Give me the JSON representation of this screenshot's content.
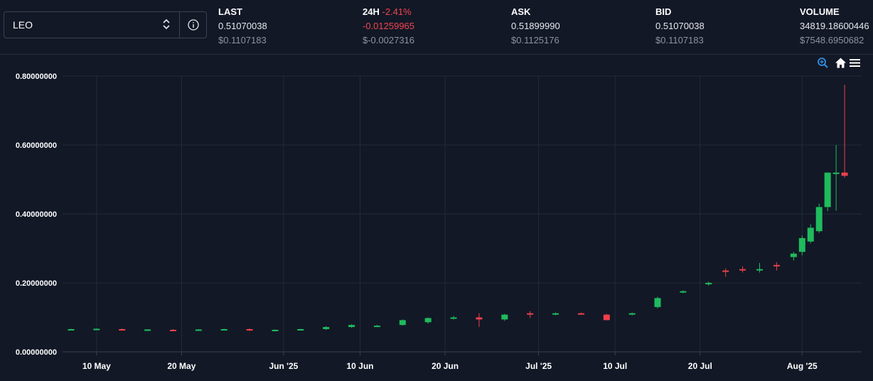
{
  "selector": {
    "value": "LEO"
  },
  "stats": [
    {
      "label": "LAST",
      "value": "0.51070038",
      "usd": "$0.1107183"
    },
    {
      "label": "24H",
      "pct": "-2.41%",
      "value": "-0.01259965",
      "usd": "$-0.0027316"
    },
    {
      "label": "ASK",
      "value": "0.51899990",
      "usd": "$0.1125176"
    },
    {
      "label": "BID",
      "value": "0.51070038",
      "usd": "$0.1107183"
    },
    {
      "label": "VOLUME",
      "value": "34819.18600446",
      "usd": "$7548.6950682"
    }
  ],
  "toolbar": {
    "zoom": "zoom-in-icon",
    "home": "home-icon",
    "menu": "menu-icon"
  },
  "colors": {
    "up": "#1fbb5d",
    "down": "#ee3f4c",
    "background": "#121826",
    "grid": "#232a38"
  },
  "chart_data": {
    "type": "candlestick",
    "ylim": [
      0,
      0.8
    ],
    "y_ticks": [
      "0.00000000",
      "0.20000000",
      "0.40000000",
      "0.60000000",
      "0.80000000"
    ],
    "x_ticks": [
      "10 May",
      "20 May",
      "Jun '25",
      "10 Jun",
      "20 Jun",
      "Jul '25",
      "10 Jul",
      "20 Jul",
      "Aug '25"
    ],
    "dates": [
      "2025-05-07",
      "2025-05-10",
      "2025-05-13",
      "2025-05-16",
      "2025-05-19",
      "2025-05-22",
      "2025-05-25",
      "2025-05-28",
      "2025-05-31",
      "2025-06-03",
      "2025-06-06",
      "2025-06-09",
      "2025-06-12",
      "2025-06-15",
      "2025-06-18",
      "2025-06-21",
      "2025-06-24",
      "2025-06-27",
      "2025-06-30",
      "2025-07-03",
      "2025-07-06",
      "2025-07-09",
      "2025-07-12",
      "2025-07-15",
      "2025-07-18",
      "2025-07-21",
      "2025-07-23",
      "2025-07-25",
      "2025-07-27",
      "2025-07-29",
      "2025-07-31",
      "2025-08-01",
      "2025-08-02",
      "2025-08-03",
      "2025-08-04",
      "2025-08-05",
      "2025-08-06"
    ],
    "ohlc": [
      [
        0.065,
        0.067,
        0.063,
        0.066
      ],
      [
        0.066,
        0.068,
        0.064,
        0.067
      ],
      [
        0.066,
        0.068,
        0.063,
        0.064
      ],
      [
        0.064,
        0.066,
        0.062,
        0.065
      ],
      [
        0.064,
        0.066,
        0.062,
        0.063
      ],
      [
        0.063,
        0.066,
        0.062,
        0.065
      ],
      [
        0.065,
        0.067,
        0.063,
        0.066
      ],
      [
        0.066,
        0.068,
        0.061,
        0.062
      ],
      [
        0.062,
        0.065,
        0.06,
        0.064
      ],
      [
        0.064,
        0.067,
        0.062,
        0.066
      ],
      [
        0.066,
        0.074,
        0.064,
        0.072
      ],
      [
        0.072,
        0.08,
        0.07,
        0.078
      ],
      [
        0.074,
        0.078,
        0.072,
        0.076
      ],
      [
        0.078,
        0.094,
        0.076,
        0.092
      ],
      [
        0.086,
        0.1,
        0.082,
        0.098
      ],
      [
        0.098,
        0.104,
        0.094,
        0.1
      ],
      [
        0.1,
        0.112,
        0.072,
        0.094
      ],
      [
        0.094,
        0.11,
        0.09,
        0.108
      ],
      [
        0.112,
        0.118,
        0.098,
        0.11
      ],
      [
        0.11,
        0.114,
        0.106,
        0.112
      ],
      [
        0.112,
        0.114,
        0.108,
        0.11
      ],
      [
        0.108,
        0.11,
        0.092,
        0.092
      ],
      [
        0.11,
        0.114,
        0.106,
        0.112
      ],
      [
        0.13,
        0.16,
        0.126,
        0.156
      ],
      [
        0.174,
        0.178,
        0.17,
        0.176
      ],
      [
        0.196,
        0.204,
        0.192,
        0.2
      ],
      [
        0.236,
        0.242,
        0.218,
        0.232
      ],
      [
        0.24,
        0.248,
        0.23,
        0.236
      ],
      [
        0.24,
        0.258,
        0.23,
        0.24
      ],
      [
        0.252,
        0.26,
        0.236,
        0.25
      ],
      [
        0.275,
        0.29,
        0.265,
        0.285
      ],
      [
        0.29,
        0.338,
        0.28,
        0.33
      ],
      [
        0.32,
        0.37,
        0.315,
        0.36
      ],
      [
        0.35,
        0.43,
        0.345,
        0.42
      ],
      [
        0.42,
        0.52,
        0.408,
        0.52
      ],
      [
        0.52,
        0.6,
        0.41,
        0.52
      ],
      [
        0.52,
        0.775,
        0.505,
        0.5107
      ]
    ]
  }
}
